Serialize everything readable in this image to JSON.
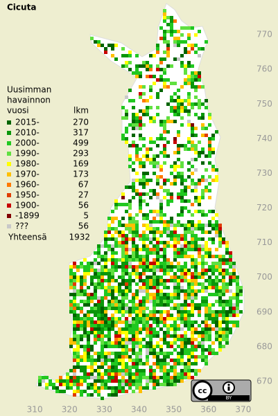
{
  "title": "Cicuta",
  "legend": {
    "heading": [
      "Uusimman",
      "havainnon",
      "vuosi"
    ],
    "count_heading": "lkm",
    "rows": [
      {
        "label": "2015-",
        "count": 270,
        "color": "#006400"
      },
      {
        "label": "2010-",
        "count": 317,
        "color": "#0a960a"
      },
      {
        "label": "2000-",
        "count": 499,
        "color": "#20c820"
      },
      {
        "label": "1990-",
        "count": 293,
        "color": "#60e040"
      },
      {
        "label": "1980-",
        "count": 169,
        "color": "#ffff00"
      },
      {
        "label": "1970-",
        "count": 173,
        "color": "#ffc000"
      },
      {
        "label": "1960-",
        "count": 67,
        "color": "#ff7800"
      },
      {
        "label": "1950-",
        "count": 27,
        "color": "#e03c00"
      },
      {
        "label": "1900-",
        "count": 56,
        "color": "#c80000"
      },
      {
        "label": "-1899",
        "count": 5,
        "color": "#800000"
      },
      {
        "label": "???",
        "count": 56,
        "color": "#c8c8c8"
      }
    ],
    "total_label": "Yhteensä",
    "total": 1932
  },
  "axes": {
    "xlim": [
      300,
      380
    ],
    "xticks": [
      310,
      320,
      330,
      340,
      350,
      360,
      370
    ],
    "ylim": [
      660,
      780
    ],
    "yticks": [
      670,
      680,
      690,
      700,
      710,
      720,
      730,
      740,
      750,
      760,
      770
    ]
  },
  "badge": "BY"
}
